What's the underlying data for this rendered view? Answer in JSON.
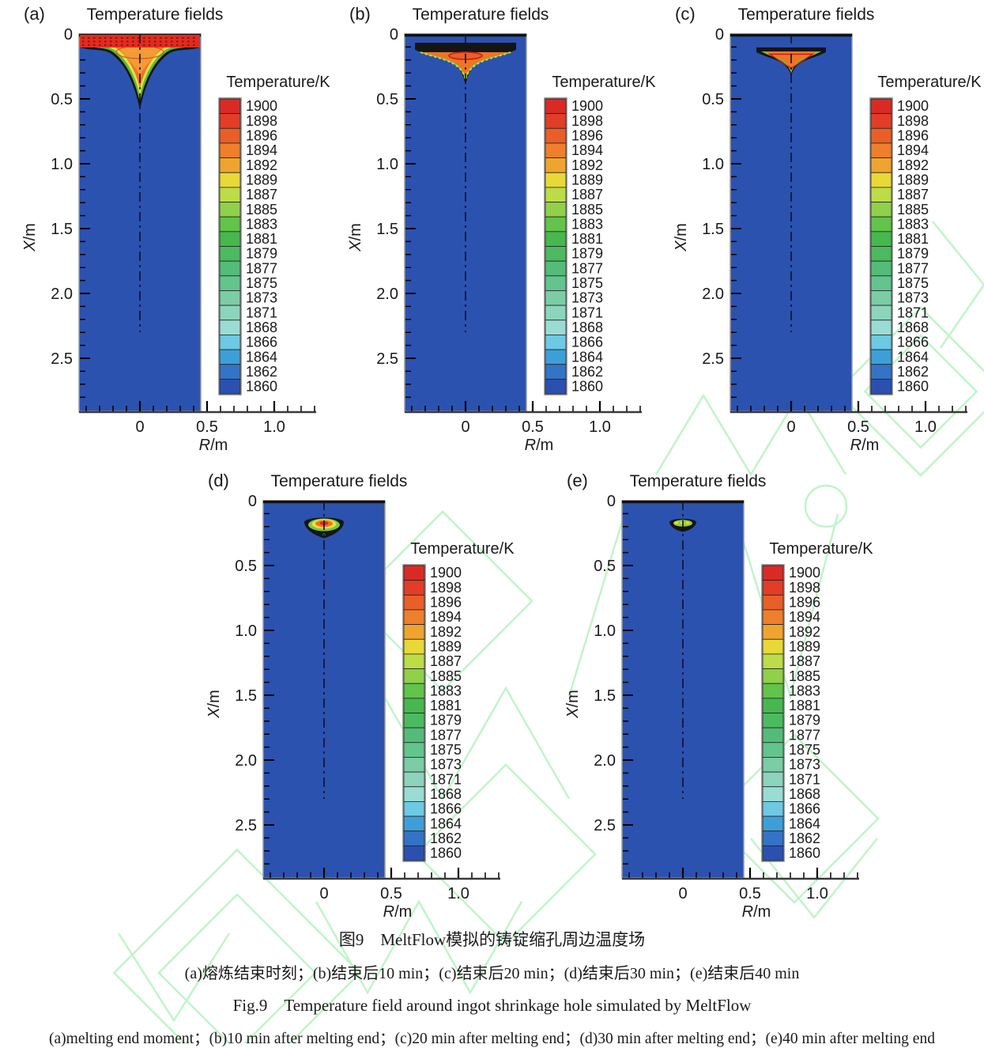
{
  "panel_title": "Temperature fields",
  "panel_labels": [
    "(a)",
    "(b)",
    "(c)",
    "(d)",
    "(e)"
  ],
  "axes": {
    "x_letter": "R",
    "x_unit": "/m",
    "y_letter": "X",
    "y_unit": "/m",
    "x_ticks": [
      "0",
      "0.5",
      "1.0"
    ],
    "y_ticks": [
      "0",
      "0.5",
      "1.0",
      "1.5",
      "2.0",
      "2.5"
    ]
  },
  "colorbar": {
    "title": "Temperature/K",
    "values": [
      "1900",
      "1898",
      "1896",
      "1894",
      "1892",
      "1889",
      "1887",
      "1885",
      "1883",
      "1881",
      "1879",
      "1877",
      "1875",
      "1873",
      "1871",
      "1868",
      "1866",
      "1864",
      "1862",
      "1860"
    ],
    "colors": [
      "#d92b26",
      "#e23d27",
      "#e85f28",
      "#ee7f2c",
      "#efa42f",
      "#e8d838",
      "#bcdc48",
      "#90d04a",
      "#62c44a",
      "#46b84e",
      "#4cba60",
      "#54bc78",
      "#64c48e",
      "#7ccca6",
      "#8cd4bc",
      "#9adcd4",
      "#6ec9e2",
      "#3e9fd8",
      "#3374c7",
      "#2b50b0"
    ]
  },
  "ingot_color": "#2c52b0",
  "watermark_color": "#8deb9e",
  "captions": {
    "cn_title": "图9　MeltFlow模拟的铸锭缩孔周边温度场",
    "cn_sub": "(a)熔炼结束时刻；(b)结束后10 min；(c)结束后20 min；(d)结束后30 min；(e)结束后40 min",
    "en_title": "Fig.9　Temperature field around ingot shrinkage hole simulated by MeltFlow",
    "en_sub": "(a)melting end moment；(b)10 min after melting end；(c)20 min after melting end；(d)30 min after melting end；(e)40 min after melting end"
  },
  "chart_data": {
    "type": "heatmap",
    "title": "Temperature fields",
    "xlabel": "R/m",
    "ylabel": "X/m",
    "x_axis_ticks": [
      0,
      0.5,
      1.0
    ],
    "y_axis_ticks": [
      0,
      0.5,
      1.0,
      1.5,
      2.0,
      2.5
    ],
    "xlim": [
      -0.45,
      1.35
    ],
    "ylim_displayed": [
      0,
      2.9
    ],
    "colorbar_title": "Temperature/K",
    "colorbar_levels": [
      1900,
      1898,
      1896,
      1894,
      1892,
      1889,
      1887,
      1885,
      1883,
      1881,
      1879,
      1877,
      1875,
      1873,
      1871,
      1868,
      1866,
      1864,
      1862,
      1860
    ],
    "ingot_region": {
      "r_range": [
        -0.45,
        0.47
      ],
      "x_range": [
        0,
        2.9
      ],
      "base_temperature_K": 1860
    },
    "centerline": {
      "r": 0,
      "x_range": [
        0,
        2.3
      ],
      "style": "dash-dot"
    },
    "panels": [
      {
        "label": "(a)",
        "time": "melting end moment",
        "hot_zone": {
          "shape": "full-width surface layer with funnel below",
          "r_extent": [
            -0.45,
            0.47
          ],
          "x_top": 0.0,
          "x_depth_max": 0.58,
          "peak_temperature_K": 1900
        }
      },
      {
        "label": "(b)",
        "time": "10 min after melting end",
        "hot_zone": {
          "shape": "triangle attached near surface",
          "r_extent": [
            -0.38,
            0.38
          ],
          "x_top": 0.07,
          "x_depth_max": 0.39,
          "peak_temperature_K": 1898
        }
      },
      {
        "label": "(c)",
        "time": "20 min after melting end",
        "hot_zone": {
          "shape": "detached triangle",
          "r_extent": [
            -0.26,
            0.26
          ],
          "x_top": 0.11,
          "x_depth_max": 0.32,
          "peak_temperature_K": 1896
        }
      },
      {
        "label": "(d)",
        "time": "30 min after melting end",
        "hot_zone": {
          "shape": "small concentric blob",
          "r_extent": [
            -0.16,
            0.16
          ],
          "x_top": 0.12,
          "x_depth_max": 0.29,
          "peak_temperature_K": 1896
        }
      },
      {
        "label": "(e)",
        "time": "40 min after melting end",
        "hot_zone": {
          "shape": "tiny blob",
          "r_extent": [
            -0.11,
            0.11
          ],
          "x_top": 0.15,
          "x_depth_max": 0.25,
          "peak_temperature_K": 1889
        }
      }
    ]
  }
}
